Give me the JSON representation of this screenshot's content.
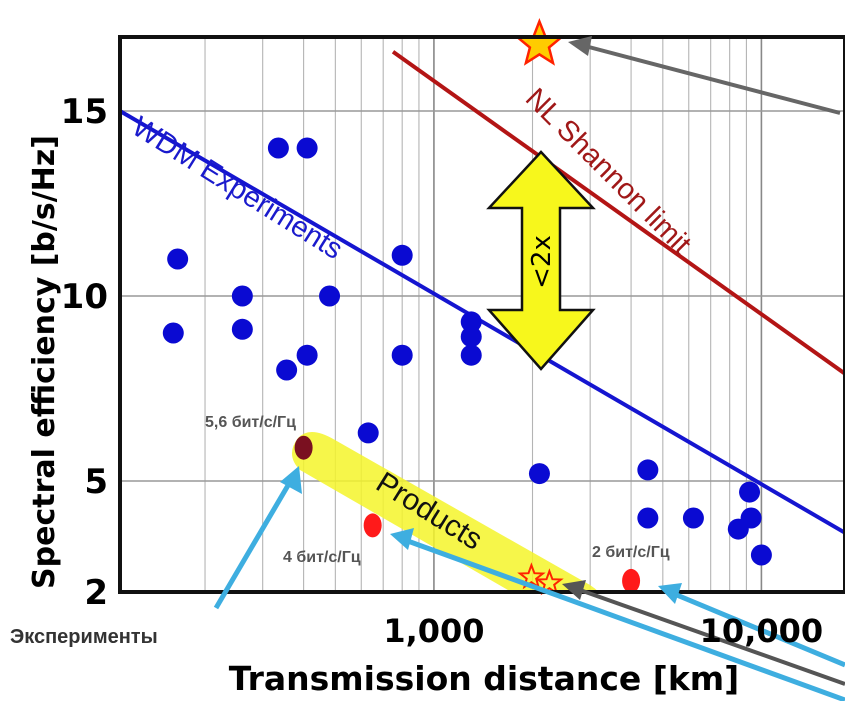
{
  "chart_data": {
    "type": "scatter",
    "xlabel": "Transmission distance [km]",
    "ylabel": "Spectral efficiency [b/s/Hz]",
    "x_scale": "log",
    "xlim": [
      110,
      18000
    ],
    "ylim": [
      2,
      17
    ],
    "grid": true,
    "x_ticks": [
      {
        "value": 1000,
        "label": "1,000"
      },
      {
        "value": 10000,
        "label": "10,000"
      }
    ],
    "y_ticks": [
      {
        "value": 2,
        "label": "2"
      },
      {
        "value": 5,
        "label": "5"
      },
      {
        "value": 10,
        "label": "10"
      },
      {
        "value": 15,
        "label": "15"
      }
    ],
    "series": [
      {
        "name": "WDM Experiments",
        "color": "#0a0ad2",
        "points": [
          {
            "x": 160,
            "y": 9.0
          },
          {
            "x": 165,
            "y": 11.0
          },
          {
            "x": 260,
            "y": 10.0
          },
          {
            "x": 260,
            "y": 9.1
          },
          {
            "x": 335,
            "y": 14.0
          },
          {
            "x": 355,
            "y": 8.0
          },
          {
            "x": 410,
            "y": 14.0
          },
          {
            "x": 410,
            "y": 8.4
          },
          {
            "x": 480,
            "y": 10.0
          },
          {
            "x": 630,
            "y": 6.3
          },
          {
            "x": 800,
            "y": 11.1
          },
          {
            "x": 800,
            "y": 8.4
          },
          {
            "x": 1300,
            "y": 9.3
          },
          {
            "x": 1300,
            "y": 8.9
          },
          {
            "x": 1300,
            "y": 8.4
          },
          {
            "x": 2100,
            "y": 5.2
          },
          {
            "x": 4500,
            "y": 5.3
          },
          {
            "x": 4500,
            "y": 4.0
          },
          {
            "x": 6200,
            "y": 4.0
          },
          {
            "x": 8500,
            "y": 3.7
          },
          {
            "x": 9200,
            "y": 4.7
          },
          {
            "x": 9300,
            "y": 4.0
          },
          {
            "x": 10000,
            "y": 3.0
          }
        ]
      },
      {
        "name": "Products",
        "color": "#ff1a1a",
        "points": [
          {
            "x": 650,
            "y": 3.8
          },
          {
            "x": 4000,
            "y": 2.3
          }
        ]
      },
      {
        "name": "Эксперименты",
        "color": "#7a1020",
        "points": [
          {
            "x": 400,
            "y": 5.9
          }
        ]
      }
    ],
    "lines": [
      {
        "name": "WDM Experiments",
        "color": "#1515d0",
        "from": {
          "x": 110,
          "y": 15.0
        },
        "to": {
          "x": 18000,
          "y": 3.6
        }
      },
      {
        "name": "NL Shannon limit",
        "color": "#b31515",
        "from": {
          "x": 750,
          "y": 16.6
        },
        "to": {
          "x": 18000,
          "y": 7.9
        }
      }
    ],
    "stars": [
      {
        "x": 2100,
        "y": 16.8
      },
      {
        "x": 2100,
        "y": 2.4
      }
    ],
    "annotations": {
      "gap": "<2x",
      "products": "Products",
      "label_56": "5,6 бит/с/Гц",
      "label_4": "4 бит/с/Гц",
      "label_2": "2 бит/с/Гц",
      "experiments_ru": "Эксперименты"
    }
  }
}
